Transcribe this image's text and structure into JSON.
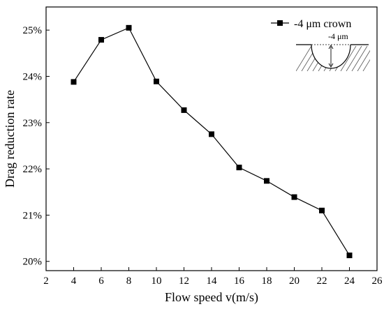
{
  "chart_data": {
    "type": "line",
    "title": "",
    "xlabel": "Flow speed v(m/s)",
    "ylabel": "Drag reduction rate",
    "xlim": [
      2,
      26
    ],
    "ylim": [
      19.8,
      25.5
    ],
    "x_ticks": [
      2,
      4,
      6,
      8,
      10,
      12,
      14,
      16,
      18,
      20,
      22,
      24,
      26
    ],
    "y_ticks": [
      20,
      21,
      22,
      23,
      24,
      25
    ],
    "y_tick_suffix": "%",
    "grid": false,
    "legend_position": "top-right",
    "series": [
      {
        "name": "-4 μm crown",
        "marker": "square",
        "color": "#000000",
        "x": [
          4,
          6,
          8,
          10,
          12,
          14,
          16,
          18,
          20,
          22,
          24
        ],
        "y": [
          23.88,
          24.79,
          25.05,
          23.89,
          23.27,
          22.75,
          22.03,
          21.74,
          21.39,
          21.1,
          20.13
        ]
      }
    ],
    "inset": {
      "label": "-4 μm",
      "description_icon": "crown-cross-section-diagram"
    }
  }
}
